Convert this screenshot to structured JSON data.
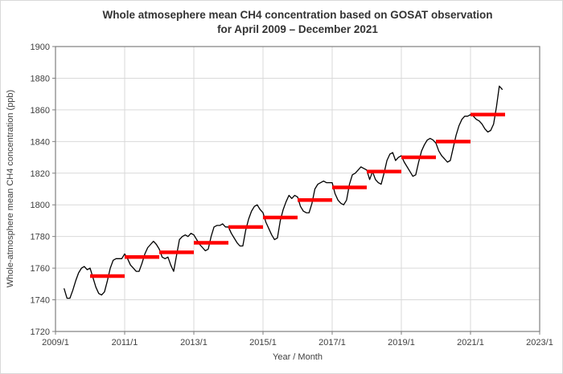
{
  "window": {
    "background": "#ffffff",
    "frame_border_color": "#d9d9d9"
  },
  "title": {
    "line1": "Whole atmosephere mean CH4 concentration based on GOSAT observation",
    "line2": "for April 2009 – December 2021"
  },
  "colors": {
    "monthly_line": "#000000",
    "annual_bar": "#ff0000",
    "gridline": "#d9d9d9",
    "axis_border": "#7f7f7f",
    "tick_mark": "#7f7f7f",
    "label_text": "#404040",
    "title_text": "#333333"
  },
  "chart_data": {
    "type": "line",
    "title": "Whole atmosephere mean CH4 concentration based on GOSAT observation for April 2009 – December 2021",
    "xlabel": "Year / Month",
    "ylabel": "Whole-atmosphere mean CH4 concentration (ppb)",
    "ylim": [
      1720,
      1900
    ],
    "ytick_step": 20,
    "ytick_labels": [
      "1720",
      "1740",
      "1760",
      "1780",
      "1800",
      "1820",
      "1840",
      "1860",
      "1880",
      "1900"
    ],
    "xtick_labels": [
      "2009/1",
      "2011/1",
      "2013/1",
      "2015/1",
      "2017/1",
      "2019/1",
      "2021/1",
      "2023/1"
    ],
    "x_axis_start": "2009/1",
    "x_axis_end": "2023/1",
    "grid": true,
    "legend": "none",
    "series": [
      {
        "name": "monthly mean CH4 (ppb)",
        "style": "line",
        "color": "#000000",
        "start": "2009/4",
        "values_by_year": [
          {
            "year": 2009,
            "values": [
              1747,
              1741,
              1741,
              1746,
              1752,
              1757,
              1760,
              1761,
              1759
            ]
          },
          {
            "year": 2010,
            "values": [
              1760,
              1754,
              1748,
              1744,
              1743,
              1745,
              1752,
              1760,
              1765,
              1766,
              1766,
              1766
            ]
          },
          {
            "year": 2011,
            "values": [
              1769,
              1766,
              1762,
              1760,
              1758,
              1758,
              1763,
              1769,
              1773,
              1775,
              1777,
              1775
            ]
          },
          {
            "year": 2012,
            "values": [
              1772,
              1767,
              1766,
              1767,
              1762,
              1758,
              1768,
              1778,
              1780,
              1781,
              1780,
              1782
            ]
          },
          {
            "year": 2013,
            "values": [
              1781,
              1778,
              1775,
              1773,
              1771,
              1772,
              1780,
              1786,
              1787,
              1787,
              1788,
              1786
            ]
          },
          {
            "year": 2014,
            "values": [
              1786,
              1782,
              1779,
              1776,
              1774,
              1774,
              1784,
              1791,
              1796,
              1799,
              1800,
              1797
            ]
          },
          {
            "year": 2015,
            "values": [
              1795,
              1789,
              1785,
              1781,
              1778,
              1779,
              1790,
              1797,
              1802,
              1806,
              1804,
              1806
            ]
          },
          {
            "year": 2016,
            "values": [
              1805,
              1799,
              1796,
              1795,
              1795,
              1801,
              1810,
              1813,
              1814,
              1815,
              1814,
              1814
            ]
          },
          {
            "year": 2017,
            "values": [
              1814,
              1807,
              1803,
              1801,
              1800,
              1803,
              1813,
              1819,
              1820,
              1822,
              1824,
              1823
            ]
          },
          {
            "year": 2018,
            "values": [
              1822,
              1816,
              1821,
              1816,
              1814,
              1813,
              1820,
              1828,
              1832,
              1833,
              1828,
              1830
            ]
          },
          {
            "year": 2019,
            "values": [
              1831,
              1827,
              1824,
              1821,
              1818,
              1819,
              1827,
              1834,
              1838,
              1841,
              1842,
              1841
            ]
          },
          {
            "year": 2020,
            "values": [
              1839,
              1834,
              1831,
              1829,
              1827,
              1828,
              1836,
              1844,
              1850,
              1854,
              1856,
              1856
            ]
          },
          {
            "year": 2021,
            "values": [
              1857,
              1856,
              1854,
              1853,
              1851,
              1848,
              1846,
              1847,
              1851,
              1862,
              1875,
              1873
            ]
          }
        ]
      },
      {
        "name": "annual mean CH4 (ppb)",
        "style": "horizontal-segments",
        "color": "#ff0000",
        "segments": [
          {
            "year": 2010,
            "mean": 1755
          },
          {
            "year": 2011,
            "mean": 1767
          },
          {
            "year": 2012,
            "mean": 1770
          },
          {
            "year": 2013,
            "mean": 1776
          },
          {
            "year": 2014,
            "mean": 1786
          },
          {
            "year": 2015,
            "mean": 1792
          },
          {
            "year": 2016,
            "mean": 1803
          },
          {
            "year": 2017,
            "mean": 1811
          },
          {
            "year": 2018,
            "mean": 1821
          },
          {
            "year": 2019,
            "mean": 1830
          },
          {
            "year": 2020,
            "mean": 1840
          },
          {
            "year": 2021,
            "mean": 1857
          }
        ]
      }
    ]
  }
}
